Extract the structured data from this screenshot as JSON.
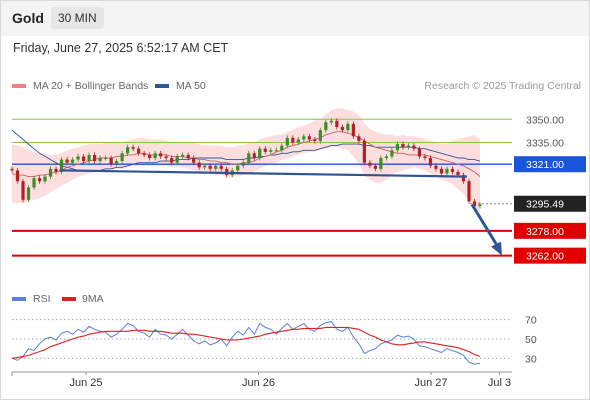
{
  "header": {
    "instrument": "Gold",
    "timeframe": "30 MIN"
  },
  "datetime": "Friday, June 27, 2025 6:52:17 AM CET",
  "credit": "Research © 2025 Trading Central",
  "legend_top": [
    {
      "label": "MA 20 + Bollinger Bands",
      "color": "#f08080"
    },
    {
      "label": "MA 50",
      "color": "#2f5597"
    }
  ],
  "legend_rsi": [
    {
      "label": "RSI",
      "color": "#5b7fd6"
    },
    {
      "label": "9MA",
      "color": "#e02020"
    }
  ],
  "chart_data": {
    "type": "line",
    "title": "",
    "price_axis": {
      "range": [
        3245,
        3365
      ],
      "ticks": [
        "3350.00",
        "3335.00",
        "3321.00",
        "3295.49",
        "3278.00",
        "3262.00"
      ]
    },
    "levels": [
      {
        "value": 3350.0,
        "label": "3350.00",
        "kind": "resistance",
        "color": "#8bc34a"
      },
      {
        "value": 3335.0,
        "label": "3335.00",
        "kind": "resistance",
        "color": "#8bc34a"
      },
      {
        "value": 3321.0,
        "label": "3321.00",
        "kind": "pivot",
        "color": "#1a56db"
      },
      {
        "value": 3295.49,
        "label": "3295.49",
        "kind": "last_price",
        "color": "#222222"
      },
      {
        "value": 3278.0,
        "label": "3278.00",
        "kind": "support",
        "color": "#e00000"
      },
      {
        "value": 3262.0,
        "label": "3262.00",
        "kind": "support",
        "color": "#e00000"
      }
    ],
    "x_labels": [
      "Jun 25",
      "Jun 26",
      "Jun 27",
      "Jul 3"
    ],
    "price_close": [
      3317,
      3310,
      3298,
      3306,
      3312,
      3310,
      3313,
      3318,
      3316,
      3324,
      3322,
      3324,
      3326,
      3323,
      3327,
      3323,
      3325,
      3325,
      3321,
      3323,
      3328,
      3332,
      3331,
      3328,
      3327,
      3325,
      3328,
      3326,
      3325,
      3322,
      3326,
      3327,
      3325,
      3322,
      3319,
      3320,
      3318,
      3320,
      3318,
      3314,
      3317,
      3320,
      3322,
      3328,
      3325,
      3331,
      3329,
      3330,
      3330,
      3333,
      3338,
      3335,
      3337,
      3339,
      3337,
      3336,
      3343,
      3348,
      3349,
      3345,
      3343,
      3347,
      3339,
      3336,
      3322,
      3320,
      3318,
      3325,
      3326,
      3330,
      3334,
      3332,
      3333,
      3331,
      3326,
      3325,
      3320,
      3318,
      3315,
      3318,
      3316,
      3314,
      3310,
      3297,
      3294,
      3295
    ],
    "bollinger_upper": [
      3334,
      3333,
      3332,
      3330,
      3329,
      3328,
      3328,
      3327,
      3327,
      3328,
      3330,
      3331,
      3332,
      3333,
      3334,
      3334,
      3334,
      3335,
      3335,
      3335,
      3335,
      3336,
      3337,
      3338,
      3338,
      3337,
      3337,
      3337,
      3336,
      3335,
      3335,
      3335,
      3335,
      3335,
      3334,
      3333,
      3333,
      3333,
      3333,
      3332,
      3332,
      3333,
      3333,
      3335,
      3335,
      3337,
      3338,
      3339,
      3340,
      3340,
      3342,
      3343,
      3345,
      3346,
      3347,
      3349,
      3350,
      3353,
      3356,
      3357,
      3357,
      3356,
      3355,
      3353,
      3347,
      3344,
      3342,
      3341,
      3340,
      3340,
      3339,
      3340,
      3339,
      3339,
      3338,
      3337,
      3336,
      3335,
      3334,
      3334,
      3336,
      3337,
      3338,
      3339,
      3340,
      3337
    ],
    "bollinger_lower": [
      3296,
      3296,
      3296,
      3297,
      3298,
      3299,
      3301,
      3303,
      3305,
      3307,
      3309,
      3311,
      3313,
      3314,
      3315,
      3316,
      3317,
      3317,
      3317,
      3318,
      3318,
      3319,
      3320,
      3320,
      3320,
      3320,
      3320,
      3320,
      3320,
      3319,
      3319,
      3319,
      3318,
      3317,
      3316,
      3315,
      3315,
      3314,
      3314,
      3313,
      3313,
      3313,
      3314,
      3315,
      3316,
      3318,
      3320,
      3321,
      3322,
      3324,
      3325,
      3326,
      3327,
      3328,
      3329,
      3329,
      3330,
      3331,
      3332,
      3332,
      3331,
      3330,
      3326,
      3321,
      3314,
      3311,
      3309,
      3309,
      3311,
      3314,
      3316,
      3317,
      3318,
      3319,
      3318,
      3317,
      3315,
      3313,
      3311,
      3310,
      3308,
      3305,
      3302,
      3297,
      3293,
      3290
    ],
    "ma20": [
      3315,
      3314,
      3314,
      3313,
      3313,
      3314,
      3314,
      3315,
      3316,
      3317,
      3319,
      3320,
      3321,
      3322,
      3323,
      3324,
      3325,
      3325,
      3325,
      3326,
      3326,
      3327,
      3327,
      3328,
      3328,
      3327,
      3327,
      3327,
      3327,
      3326,
      3326,
      3326,
      3325,
      3325,
      3324,
      3324,
      3323,
      3323,
      3322,
      3322,
      3321,
      3321,
      3322,
      3322,
      3323,
      3325,
      3326,
      3327,
      3329,
      3330,
      3332,
      3333,
      3334,
      3335,
      3336,
      3337,
      3338,
      3340,
      3341,
      3342,
      3342,
      3341,
      3340,
      3338,
      3336,
      3334,
      3332,
      3331,
      3330,
      3329,
      3328,
      3328,
      3327,
      3327,
      3327,
      3327,
      3326,
      3325,
      3324,
      3323,
      3322,
      3321,
      3320,
      3318,
      3316,
      3313
    ],
    "ma50": [
      3343,
      3340,
      3337,
      3334,
      3331,
      3328,
      3326,
      3324,
      3322,
      3320,
      3319,
      3318,
      3317,
      3317,
      3317,
      3317,
      3317,
      3318,
      3318,
      3319,
      3319,
      3320,
      3321,
      3322,
      3322,
      3322,
      3322,
      3323,
      3323,
      3323,
      3324,
      3324,
      3324,
      3325,
      3325,
      3325,
      3325,
      3325,
      3325,
      3324,
      3324,
      3324,
      3324,
      3325,
      3325,
      3326,
      3326,
      3327,
      3327,
      3328,
      3328,
      3329,
      3329,
      3330,
      3330,
      3330,
      3331,
      3332,
      3333,
      3333,
      3334,
      3334,
      3334,
      3334,
      3333,
      3333,
      3332,
      3332,
      3332,
      3332,
      3332,
      3332,
      3332,
      3332,
      3331,
      3331,
      3330,
      3329,
      3328,
      3327,
      3326,
      3325,
      3325,
      3324,
      3324,
      3323
    ],
    "trendline": {
      "from": [
        0.095,
        3317
      ],
      "to": [
        0.91,
        3313
      ],
      "color": "#2f5597"
    },
    "projection_arrow": {
      "from": [
        0.92,
        3295
      ],
      "to": [
        0.98,
        3262
      ],
      "color": "#2f5597"
    },
    "rsi_panel": {
      "y_range": [
        20,
        80
      ],
      "ticks": [
        "70",
        "50",
        "30"
      ],
      "rsi": [
        30,
        28,
        32,
        40,
        38,
        45,
        50,
        52,
        49,
        56,
        58,
        55,
        60,
        57,
        63,
        60,
        58,
        57,
        52,
        55,
        60,
        66,
        64,
        58,
        56,
        52,
        60,
        55,
        54,
        50,
        55,
        60,
        54,
        48,
        45,
        48,
        44,
        46,
        50,
        43,
        52,
        58,
        54,
        62,
        55,
        66,
        62,
        60,
        55,
        61,
        66,
        60,
        63,
        66,
        60,
        58,
        64,
        67,
        68,
        60,
        58,
        62,
        52,
        45,
        35,
        38,
        40,
        45,
        47,
        49,
        54,
        52,
        53,
        50,
        43,
        42,
        40,
        38,
        36,
        40,
        38,
        36,
        33,
        26,
        24,
        25
      ],
      "ma9": [
        30,
        31,
        32,
        33,
        35,
        37,
        39,
        42,
        44,
        46,
        48,
        50,
        52,
        53,
        55,
        56,
        57,
        58,
        58,
        58,
        58,
        58,
        59,
        59,
        59,
        58,
        58,
        58,
        57,
        56,
        56,
        56,
        55,
        55,
        54,
        53,
        52,
        51,
        50,
        49,
        49,
        49,
        50,
        51,
        52,
        53,
        55,
        56,
        57,
        58,
        59,
        60,
        60,
        61,
        61,
        61,
        61,
        62,
        62,
        62,
        62,
        62,
        61,
        60,
        57,
        54,
        52,
        49,
        47,
        45,
        44,
        44,
        45,
        46,
        47,
        47,
        46,
        45,
        44,
        43,
        42,
        41,
        39,
        37,
        34,
        32
      ]
    }
  }
}
